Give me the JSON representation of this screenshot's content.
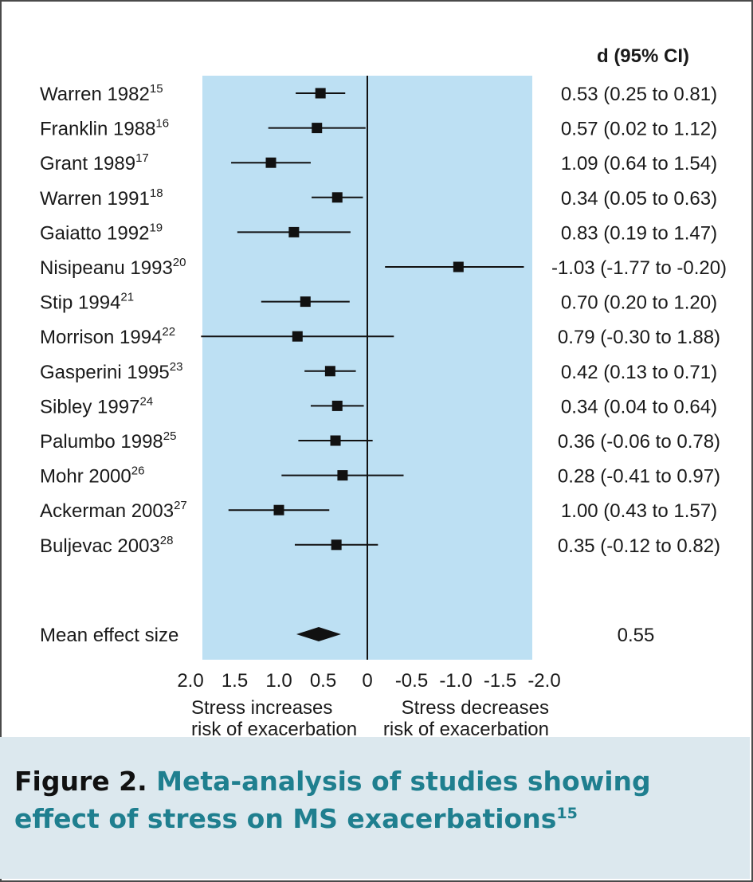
{
  "chart_data": {
    "type": "forest",
    "estimate_header": "d (95% CI)",
    "xlim": [
      2.0,
      -2.0
    ],
    "x_ticks": [
      "2.0",
      "1.5",
      "1.0",
      "0.5",
      "0",
      "-0.5",
      "-1.0",
      "-1.5",
      "-2.0"
    ],
    "x_tick_values": [
      2.0,
      1.5,
      1.0,
      0.5,
      0,
      -0.5,
      -1.0,
      -1.5,
      -2.0
    ],
    "left_note": [
      "Stress increases",
      "risk of exacerbation"
    ],
    "right_note": [
      "Stress decreases",
      "risk of exacerbation"
    ],
    "studies": [
      {
        "name": "Warren 1982",
        "ref": "15",
        "d": 0.53,
        "lo": 0.25,
        "hi": 0.81,
        "ci": "0.53 (0.25 to 0.81)"
      },
      {
        "name": "Franklin 1988",
        "ref": "16",
        "d": 0.57,
        "lo": 0.02,
        "hi": 1.12,
        "ci": "0.57 (0.02 to 1.12)"
      },
      {
        "name": "Grant 1989",
        "ref": "17",
        "d": 1.09,
        "lo": 0.64,
        "hi": 1.54,
        "ci": "1.09 (0.64 to 1.54)"
      },
      {
        "name": "Warren 1991",
        "ref": "18",
        "d": 0.34,
        "lo": 0.05,
        "hi": 0.63,
        "ci": "0.34 (0.05 to 0.63)"
      },
      {
        "name": "Gaiatto 1992",
        "ref": "19",
        "d": 0.83,
        "lo": 0.19,
        "hi": 1.47,
        "ci": "0.83 (0.19 to 1.47)"
      },
      {
        "name": "Nisipeanu 1993",
        "ref": "20",
        "d": -1.03,
        "lo": -1.77,
        "hi": -0.2,
        "ci": "-1.03 (-1.77 to -0.20)"
      },
      {
        "name": "Stip 1994",
        "ref": "21",
        "d": 0.7,
        "lo": 0.2,
        "hi": 1.2,
        "ci": "0.70 (0.20 to 1.20)"
      },
      {
        "name": "Morrison 1994",
        "ref": "22",
        "d": 0.79,
        "lo": -0.3,
        "hi": 1.88,
        "ci": "0.79 (-0.30 to 1.88)"
      },
      {
        "name": "Gasperini 1995",
        "ref": "23",
        "d": 0.42,
        "lo": 0.13,
        "hi": 0.71,
        "ci": "0.42 (0.13 to 0.71)"
      },
      {
        "name": "Sibley 1997",
        "ref": "24",
        "d": 0.34,
        "lo": 0.04,
        "hi": 0.64,
        "ci": "0.34 (0.04 to 0.64)"
      },
      {
        "name": "Palumbo 1998",
        "ref": "25",
        "d": 0.36,
        "lo": -0.06,
        "hi": 0.78,
        "ci": "0.36 (-0.06 to 0.78)"
      },
      {
        "name": "Mohr 2000",
        "ref": "26",
        "d": 0.28,
        "lo": -0.41,
        "hi": 0.97,
        "ci": "0.28 (-0.41 to 0.97)"
      },
      {
        "name": "Ackerman 2003",
        "ref": "27",
        "d": 1.0,
        "lo": 0.43,
        "hi": 1.57,
        "ci": "1.00 (0.43 to 1.57)"
      },
      {
        "name": "Buljevac 2003",
        "ref": "28",
        "d": 0.35,
        "lo": -0.12,
        "hi": 0.82,
        "ci": "0.35 (-0.12 to 0.82)"
      }
    ],
    "summary": {
      "label": "Mean effect size",
      "d": 0.55,
      "text": "0.55"
    },
    "colors": {
      "panel": "#bde0f3",
      "marker": "#111111"
    }
  },
  "caption": {
    "figure_label": "Figure 2.",
    "text": "Meta-analysis of studies showing effect of stress on MS exacerbations",
    "ref": "15"
  }
}
